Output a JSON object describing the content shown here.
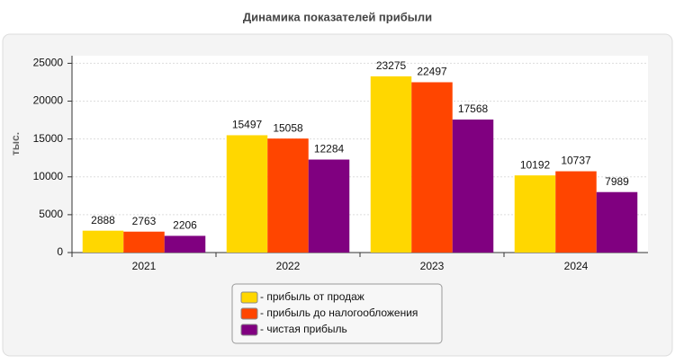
{
  "chart_data": {
    "type": "bar",
    "title": "Динамика показателей прибыли",
    "y_label": "тыс.",
    "categories": [
      "2021",
      "2022",
      "2023",
      "2024"
    ],
    "series": [
      {
        "name": "- прибыль от продаж",
        "color": "#ffd700",
        "values": [
          2888,
          15497,
          23275,
          10192
        ]
      },
      {
        "name": "- прибыль до налогообложения",
        "color": "#ff4500",
        "values": [
          2763,
          15058,
          22497,
          10737
        ]
      },
      {
        "name": "- чистая прибыль",
        "color": "#800080",
        "values": [
          2206,
          12284,
          17568,
          7989
        ]
      }
    ],
    "ylim": [
      0,
      26000
    ],
    "yticks": [
      0,
      5000,
      10000,
      15000,
      20000,
      25000
    ],
    "grid": true
  }
}
